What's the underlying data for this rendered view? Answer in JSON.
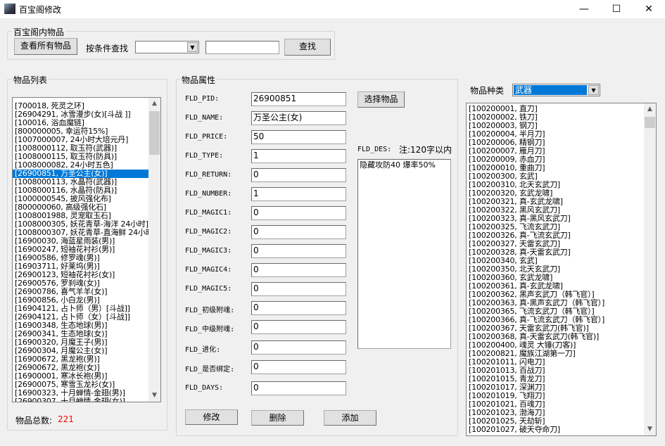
{
  "window": {
    "title": "百宝阁修改",
    "minimize": "—",
    "maximize": "☐",
    "close": "✕"
  },
  "search_group": {
    "label": "百宝阁内物品",
    "view_all": "查看所有物品",
    "condition_label": "按条件查找",
    "condition_value": "",
    "search_value": "",
    "search_button": "查找"
  },
  "item_list": {
    "label": "物品列表",
    "items": [
      "[700018, 死灵之环]",
      "[26904291, 冰雪漫步(女)[斗战 ]]",
      "[100016, 浴血魔链]",
      "[800000005, 幸运符15%]",
      "[1007000007, 24小时大培元丹]",
      "[1008000112, 取玉符(武器)]",
      "[1008000115, 取玉符(防具)]",
      "[1008000082, 24小时五色]",
      "[26900851, 万圣公主(女)]",
      "[1008000113, 水晶符(武器)]",
      "[1008000116, 水晶符(防具)]",
      "[1000000545, 披风强化布]",
      "[800000060, 高级强化石]",
      "[1008001988, 灵宠取玉石]",
      "[1008000305, 妖花青草-海洋 24小时]",
      "[1008000307, 妖花青草-直海鲜 24小时]",
      "[16900030, 海蓝星雨装(男)]",
      "[16900247, 短袖花衬衫(男)]",
      "[16900586, 修罗魂(男)]",
      "[16903711, 好莱坞(男)]",
      "[26900123, 短袖花衬衫(女)]",
      "[26900576, 罗刹魂(女)]",
      "[26900786, 喜气羊羊(女)]",
      "[16900856, 小白龙(男)]",
      "[16904121, 占卜师（男）[斗战]]",
      "[26904121, 占卜师（女）[斗战]]",
      "[16900348, 生态地球(男)]",
      "[26900341, 生态地球(女)]",
      "[16900320, 月魔王子(男)]",
      "[26900304, 月魔公主(女)]",
      "[16900672, 黑龙袍(男)]",
      "[26900672, 黑龙袍(女)]",
      "[16900001, 寒冰长袍(男)]",
      "[26900075, 寒雪玉龙衫(女)]",
      "[16900323, 十月蝉情-金翅(男)]",
      "[26900307, 十月蝉情-金翅(女)]"
    ],
    "selected_index": 8,
    "total_label": "物品总数:",
    "total_value": "221"
  },
  "properties": {
    "label": "物品属性",
    "select_button": "选择物品",
    "fields": [
      {
        "label": "FLD_PID:",
        "value": "26900851"
      },
      {
        "label": "FLD_NAME:",
        "value": "万圣公主(女)"
      },
      {
        "label": "FLD_PRICE:",
        "value": "50"
      },
      {
        "label": "FLD_TYPE:",
        "value": "1"
      },
      {
        "label": "FLD_RETURN:",
        "value": "0"
      },
      {
        "label": "FLD_NUMBER:",
        "value": "1"
      },
      {
        "label": "FLD_MAGIC1:",
        "value": "0"
      },
      {
        "label": "FLD_MAGIC2:",
        "value": "0"
      },
      {
        "label": "FLD_MAGIC3:",
        "value": "0"
      },
      {
        "label": "FLD_MAGIC4:",
        "value": "0"
      },
      {
        "label": "FLD_MAGIC5:",
        "value": "0"
      },
      {
        "label": "FLD_初级附魂:",
        "value": "0"
      },
      {
        "label": "FLD_中级附魂:",
        "value": "0"
      },
      {
        "label": "FLD_进化:",
        "value": "0"
      },
      {
        "label": "FLD_是否绑定:",
        "value": "0"
      },
      {
        "label": "FLD_DAYS:",
        "value": "0"
      }
    ],
    "des_label": "FLD_DES:",
    "des_note": "注:120字以内",
    "des_value": "隐藏攻防40 爆率50%",
    "modify": "修改",
    "delete": "删除",
    "add": "添加"
  },
  "category": {
    "label": "物品种类",
    "value": "武器",
    "items": [
      "[100200001, 直刀]",
      "[100200002, 铁刀]",
      "[100200003, 钢刀]",
      "[100200004, 半月刀]",
      "[100200006, 精钢刀]",
      "[100200007, 雁月刀]",
      "[100200009, 赤血刀]",
      "[100200010, 重曲刀]",
      "[100200300, 玄武]",
      "[100200310, 北天玄武刀]",
      "[100200320, 玄武龙啸]",
      "[100200321, 真-玄武龙啸]",
      "[100200322, 黑风玄武刀]",
      "[100200323, 真-黑风玄武刀]",
      "[100200325, 飞流玄武刀]",
      "[100200326, 真-飞流玄武刀]",
      "[100200327, 天雷玄武刀]",
      "[100200328, 真-天雷玄武刀]",
      "[100200340, 玄武]",
      "[100200350, 北天玄武刀]",
      "[100200360, 玄武龙啸]",
      "[100200361, 真-玄武龙啸]",
      "[100200362, 黑声玄武刀（韩飞官）]",
      "[100200363, 真-黑声玄武刀（韩飞官）]",
      "[100200365, 飞流玄武刀（韩飞官）]",
      "[100200366, 真-飞流玄武刀（韩飞官）]",
      "[100200367, 天雷玄武刀(韩飞官)]",
      "[100200368, 真-天雷玄武刀(韩飞官)]",
      "[100200400, 魂灵 大锤(刀客)]",
      "[100200821, 魔族江湖第一刀]",
      "[100201011, 闪电刀]",
      "[100201013, 百战刀]",
      "[100201015, 青龙刀]",
      "[100201017, 深渊刀]",
      "[100201019, 飞翔刀]",
      "[100201021, 百魂刀]",
      "[100201023, 渤海刀]",
      "[100201025, 天劫斩]",
      "[100201027, 破天夺命刀]"
    ]
  },
  "colors": {
    "selection": "#0078d7",
    "total_value": "#ff0000"
  }
}
